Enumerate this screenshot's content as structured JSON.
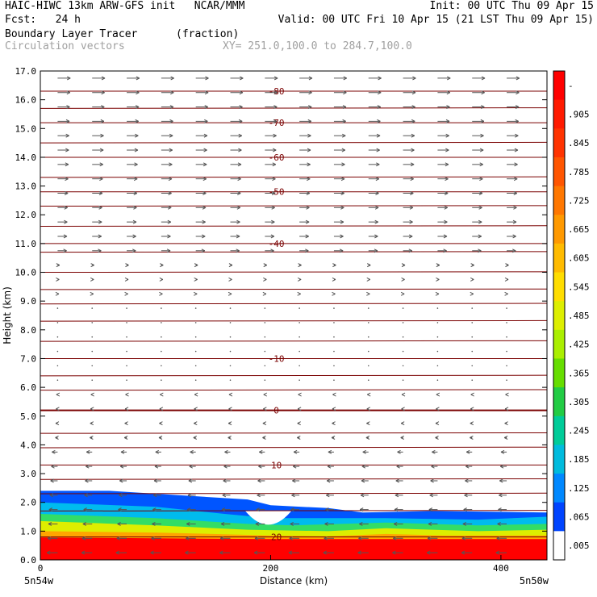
{
  "header": {
    "line1_left": "HAIC-HIWC 13km ARW-GFS init   NCAR/MMM",
    "line1_right": "Init: 00 UTC Thu 09 Apr 15",
    "line2_left": "Fcst:   24 h",
    "line2_right": "Valid: 00 UTC Fri 10 Apr 15 (21 LST Thu 09 Apr 15)",
    "line3_left": "Boundary Layer Tracer",
    "line3_unit": "(fraction)",
    "line4_left": "Circulation vectors",
    "line4_xy": "XY= 251.0,100.0 to 284.7,100.0"
  },
  "chart_data": {
    "type": "heatmap",
    "xlabel": "Distance (km)",
    "ylabel": "Height (km)",
    "xlim": [
      0,
      440
    ],
    "ylim": [
      0,
      17
    ],
    "x_ticks": [
      0,
      200,
      400
    ],
    "y_ticks": [
      "0.0",
      "1.0",
      "2.0",
      "3.0",
      "4.0",
      "5.0",
      "6.0",
      "7.0",
      "8.0",
      "9.0",
      "10.0",
      "11.0",
      "12.0",
      "13.0",
      "14.0",
      "15.0",
      "16.0",
      "17.0"
    ],
    "x_end_labels": {
      "left": "5n54w",
      "right": "5n50w"
    },
    "colorbar": {
      "labels": [
        "-",
        ".905",
        ".845",
        ".785",
        ".725",
        ".665",
        ".605",
        ".545",
        ".485",
        ".425",
        ".365",
        ".305",
        ".245",
        ".185",
        ".125",
        ".065",
        ".005"
      ],
      "colors": [
        "#ff0000",
        "#ff1a00",
        "#ff3300",
        "#ff5500",
        "#ff7700",
        "#ff9900",
        "#ffbb00",
        "#ffdd00",
        "#ddee00",
        "#aaee00",
        "#66dd00",
        "#22cc44",
        "#00cc99",
        "#00bbdd",
        "#0088ff",
        "#0044ff",
        "#ffffff"
      ]
    },
    "tracer_field": [
      {
        "level": ">0.965",
        "color": "#ff0000",
        "top": [
          [
            0,
            0.78
          ],
          [
            100,
            0.75
          ],
          [
            200,
            0.72
          ],
          [
            300,
            0.72
          ],
          [
            440,
            0.72
          ]
        ]
      },
      {
        "level": "0.6-0.9",
        "color": "#ffa500",
        "top": [
          [
            0,
            1.0
          ],
          [
            100,
            0.95
          ],
          [
            200,
            0.85
          ],
          [
            250,
            0.82
          ],
          [
            300,
            0.9
          ],
          [
            350,
            0.85
          ],
          [
            440,
            0.85
          ]
        ]
      },
      {
        "level": "0.4",
        "color": "#ddee00",
        "top": [
          [
            0,
            1.35
          ],
          [
            100,
            1.2
          ],
          [
            180,
            1.05
          ],
          [
            250,
            1.0
          ],
          [
            300,
            1.1
          ],
          [
            380,
            1.0
          ],
          [
            440,
            1.05
          ]
        ]
      },
      {
        "level": "0.25",
        "color": "#33dd66",
        "top": [
          [
            0,
            1.6
          ],
          [
            100,
            1.45
          ],
          [
            180,
            1.25
          ],
          [
            220,
            1.2
          ],
          [
            300,
            1.3
          ],
          [
            380,
            1.2
          ],
          [
            440,
            1.25
          ]
        ]
      },
      {
        "level": "0.15",
        "color": "#00bbee",
        "top": [
          [
            0,
            2.0
          ],
          [
            100,
            1.85
          ],
          [
            160,
            1.6
          ],
          [
            200,
            1.45
          ],
          [
            300,
            1.45
          ],
          [
            380,
            1.4
          ],
          [
            440,
            1.5
          ]
        ]
      },
      {
        "level": "0.065",
        "color": "#0055ff",
        "top": [
          [
            0,
            2.4
          ],
          [
            60,
            2.4
          ],
          [
            120,
            2.25
          ],
          [
            180,
            2.1
          ],
          [
            200,
            1.9
          ],
          [
            250,
            1.8
          ],
          [
            280,
            1.65
          ],
          [
            340,
            1.7
          ],
          [
            440,
            1.65
          ]
        ]
      }
    ],
    "gap": {
      "x": [
        178,
        218
      ],
      "ylo": 1.1,
      "yhi": 1.7
    },
    "temperature_contours": {
      "values": [
        -80,
        -70,
        -60,
        -50,
        -40,
        -10,
        0,
        10,
        20
      ],
      "heights_km": [
        16.3,
        15.2,
        14.0,
        12.8,
        11.0,
        7.0,
        5.2,
        3.3,
        0.8
      ],
      "label_positions": [
        "both",
        "both",
        "both",
        "both",
        "both",
        "both",
        "both",
        "both",
        "both"
      ]
    },
    "extra_contour_heights_km": [
      15.7,
      14.5,
      13.3,
      12.3,
      11.6,
      10.7,
      10.0,
      9.4,
      8.9,
      8.3,
      7.6,
      6.4,
      5.9,
      4.4,
      3.9,
      2.8,
      2.3,
      1.7
    ],
    "vectors": {
      "upper": {
        "from_km": 10.5,
        "direction": "east"
      },
      "middle": {
        "from_km": 4.0,
        "to_km": 10.5,
        "direction": "weak"
      },
      "lower": {
        "to_km": 4.0,
        "direction": "west"
      }
    }
  }
}
